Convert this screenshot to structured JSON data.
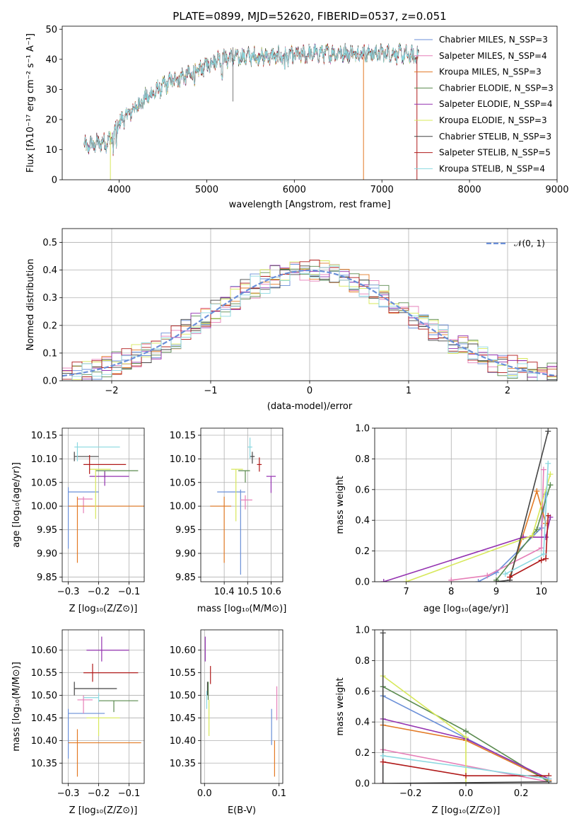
{
  "chart_data": [
    {
      "id": "spectrum",
      "type": "line",
      "title": "PLATE=0899, MJD=52620, FIBERID=0537, z=0.051",
      "xlabel": "wavelength [Angstrom, rest frame]",
      "ylabel": "Flux [fλ10⁻¹⁷ erg cm⁻² s⁻¹ A⁻¹]",
      "xlim": [
        3350,
        9000
      ],
      "ylim": [
        0,
        51
      ],
      "xticks": [
        "4000",
        "5000",
        "6000",
        "7000",
        "8000",
        "9000"
      ],
      "yticks": [
        "0",
        "10",
        "20",
        "30",
        "40",
        "50"
      ],
      "grid": false,
      "legend_position": "upper-right",
      "continuum_anchors": [
        [
          3600,
          11
        ],
        [
          3900,
          13
        ],
        [
          4000,
          19
        ],
        [
          4300,
          27
        ],
        [
          4600,
          33
        ],
        [
          4900,
          36
        ],
        [
          5100,
          40
        ],
        [
          5500,
          41
        ],
        [
          5900,
          41
        ],
        [
          6300,
          42
        ],
        [
          6700,
          42
        ],
        [
          7100,
          42
        ],
        [
          7400,
          41
        ]
      ],
      "series": [
        {
          "name": "Chabrier MILES, N_SSP=3",
          "color": "#6a8fd8"
        },
        {
          "name": "Salpeter MILES, N_SSP=4",
          "color": "#e67fb8"
        },
        {
          "name": "Kroupa MILES, N_SSP=3",
          "color": "#e37a25"
        },
        {
          "name": "Chabrier ELODIE, N_SSP=3",
          "color": "#5a8a4e"
        },
        {
          "name": "Salpeter ELODIE, N_SSP=4",
          "color": "#9432b0"
        },
        {
          "name": "Kroupa ELODIE, N_SSP=3",
          "color": "#d7e85a"
        },
        {
          "name": "Chabrier STELIB, N_SSP=3",
          "color": "#444444"
        },
        {
          "name": "Salpeter STELIB, N_SSP=5",
          "color": "#b01a1a"
        },
        {
          "name": "Kroupa STELIB, N_SSP=4",
          "color": "#8ad8e0"
        }
      ]
    },
    {
      "id": "residuals",
      "type": "line",
      "xlabel": "(data-model)/error",
      "ylabel": "Normed distribution",
      "xlim": [
        -2.5,
        2.5
      ],
      "ylim": [
        0,
        0.55
      ],
      "xticks": [
        "−2",
        "−1",
        "0",
        "1",
        "2"
      ],
      "yticks": [
        "0.0",
        "0.1",
        "0.2",
        "0.3",
        "0.4",
        "0.5"
      ],
      "grid": true,
      "legend_position": "upper-right",
      "gaussian_label": "𝒩(0, 1)",
      "gaussian_color": "#6a8fd8",
      "bin_width": 0.1
    },
    {
      "id": "age-vs-Z",
      "type": "scatter",
      "xlabel": "Z [log₁₀(Z/Z⊙)]",
      "ylabel": "age  [log₁₀(age/yr)]",
      "xlim": [
        -0.32,
        -0.05
      ],
      "ylim": [
        9.84,
        10.165
      ],
      "xticks": [
        "−0.3",
        "−0.2",
        "−0.1"
      ],
      "yticks": [
        "9.85",
        "9.90",
        "9.95",
        "10.00",
        "10.05",
        "10.10",
        "10.15"
      ],
      "grid": true,
      "points": [
        {
          "x": -0.3,
          "y": 10.03,
          "xerr": [
            0.0,
            0.1
          ],
          "yerr": [
            0.12,
            0.01
          ],
          "color": "#6a8fd8"
        },
        {
          "x": -0.25,
          "y": 10.015,
          "xerr": [
            0.02,
            0.03
          ],
          "yerr": [
            0.03,
            0.005
          ],
          "color": "#e67fb8"
        },
        {
          "x": -0.27,
          "y": 10.0,
          "xerr": [
            0.03,
            0.22
          ],
          "yerr": [
            0.12,
            0.02
          ],
          "color": "#e37a25"
        },
        {
          "x": -0.18,
          "y": 10.075,
          "xerr": [
            0.03,
            0.11
          ],
          "yerr": [
            0.015,
            0.0
          ],
          "color": "#5a8a4e"
        },
        {
          "x": -0.18,
          "y": 10.063,
          "xerr": [
            0.05,
            0.08
          ],
          "yerr": [
            0.02,
            0.01
          ],
          "color": "#9432b0"
        },
        {
          "x": -0.21,
          "y": 10.078,
          "xerr": [
            0.02,
            0.05
          ],
          "yerr": [
            0.105,
            0.0
          ],
          "color": "#d7e85a"
        },
        {
          "x": -0.28,
          "y": 10.105,
          "xerr": [
            0.0,
            0.08
          ],
          "yerr": [
            0.01,
            0.01
          ],
          "color": "#444444"
        },
        {
          "x": -0.23,
          "y": 10.088,
          "xerr": [
            0.02,
            0.12
          ],
          "yerr": [
            0.02,
            0.02
          ],
          "color": "#b01a1a"
        },
        {
          "x": -0.27,
          "y": 10.125,
          "xerr": [
            0.01,
            0.14
          ],
          "yerr": [
            0.03,
            0.01
          ],
          "color": "#8ad8e0"
        }
      ]
    },
    {
      "id": "age-vs-mass",
      "type": "scatter",
      "xlabel": "mass [log₁₀(M/M⊙)]",
      "xlim": [
        10.3,
        10.65
      ],
      "ylim": [
        9.84,
        10.165
      ],
      "xticks": [
        "10.4",
        "10.5",
        "10.6"
      ],
      "yticks": [
        "9.85",
        "9.90",
        "9.95",
        "10.00",
        "10.05",
        "10.10",
        "10.15"
      ],
      "grid": true,
      "points": [
        {
          "x": 10.47,
          "y": 10.03,
          "xerr": [
            0.1,
            0.02
          ],
          "yerr": [
            0.175,
            0.005
          ],
          "color": "#6a8fd8"
        },
        {
          "x": 10.49,
          "y": 10.013,
          "xerr": [
            0.02,
            0.03
          ],
          "yerr": [
            0.02,
            0.01
          ],
          "color": "#e67fb8"
        },
        {
          "x": 10.4,
          "y": 10.0,
          "xerr": [
            0.06,
            0.03
          ],
          "yerr": [
            0.12,
            0.02
          ],
          "color": "#e37a25"
        },
        {
          "x": 10.49,
          "y": 10.075,
          "xerr": [
            0.03,
            0.02
          ],
          "yerr": [
            0.025,
            0.0
          ],
          "color": "#5a8a4e"
        },
        {
          "x": 10.6,
          "y": 10.063,
          "xerr": [
            0.02,
            0.02
          ],
          "yerr": [
            0.035,
            0.0
          ],
          "color": "#9432b0"
        },
        {
          "x": 10.45,
          "y": 10.078,
          "xerr": [
            0.02,
            0.03
          ],
          "yerr": [
            0.11,
            0.0
          ],
          "color": "#d7e85a"
        },
        {
          "x": 10.52,
          "y": 10.105,
          "xerr": [
            0.01,
            0.01
          ],
          "yerr": [
            0.015,
            0.01
          ],
          "color": "#444444"
        },
        {
          "x": 10.55,
          "y": 10.088,
          "xerr": [
            0.01,
            0.01
          ],
          "yerr": [
            0.015,
            0.015
          ],
          "color": "#b01a1a"
        },
        {
          "x": 10.51,
          "y": 10.125,
          "xerr": [
            0.01,
            0.01
          ],
          "yerr": [
            0.025,
            0.02
          ],
          "color": "#8ad8e0"
        }
      ]
    },
    {
      "id": "massweight-vs-age",
      "type": "line",
      "xlabel": "age  [log₁₀(age/yr)]",
      "ylabel": "mass weight",
      "xlim": [
        6.3,
        10.35
      ],
      "ylim": [
        0,
        1.0
      ],
      "xticks": [
        "7",
        "8",
        "9",
        "10"
      ],
      "yticks": [
        "0.0",
        "0.2",
        "0.4",
        "0.6",
        "0.8",
        "1.0"
      ],
      "grid": true,
      "series": [
        {
          "color": "#6a8fd8",
          "x": [
            8.6,
            9.0,
            10.0,
            10.1
          ],
          "y": [
            0.0,
            0.06,
            0.35,
            0.57
          ]
        },
        {
          "color": "#e67fb8",
          "x": [
            8.0,
            8.8,
            10.0,
            10.05
          ],
          "y": [
            0.01,
            0.04,
            0.22,
            0.73
          ]
        },
        {
          "color": "#e37a25",
          "x": [
            9.3,
            9.9,
            10.1
          ],
          "y": [
            0.03,
            0.59,
            0.38
          ]
        },
        {
          "color": "#5a8a4e",
          "x": [
            9.0,
            9.9,
            10.2
          ],
          "y": [
            0.01,
            0.34,
            0.63
          ]
        },
        {
          "color": "#9432b0",
          "x": [
            6.5,
            9.6,
            10.1,
            10.2
          ],
          "y": [
            0.0,
            0.29,
            0.29,
            0.42
          ]
        },
        {
          "color": "#d7e85a",
          "x": [
            7.0,
            9.8,
            10.2
          ],
          "y": [
            0.0,
            0.3,
            0.7
          ]
        },
        {
          "color": "#444444",
          "x": [
            9.0,
            9.3,
            10.15
          ],
          "y": [
            0.0,
            0.01,
            0.98
          ]
        },
        {
          "color": "#b01a1a",
          "x": [
            9.3,
            10.0,
            10.1,
            10.15
          ],
          "y": [
            0.03,
            0.14,
            0.15,
            0.43
          ]
        },
        {
          "color": "#8ad8e0",
          "x": [
            9.2,
            10.05,
            10.15
          ],
          "y": [
            0.05,
            0.18,
            0.77
          ]
        }
      ]
    },
    {
      "id": "mass-vs-Z",
      "type": "scatter",
      "xlabel": "Z [log₁₀(Z/Z⊙)]",
      "ylabel": "mass [log₁₀(M/M⊙)]",
      "xlim": [
        -0.32,
        -0.05
      ],
      "ylim": [
        10.305,
        10.645
      ],
      "xticks": [
        "−0.3",
        "−0.2",
        "−0.1"
      ],
      "yticks": [
        "10.35",
        "10.40",
        "10.45",
        "10.50",
        "10.55",
        "10.60"
      ],
      "grid": true,
      "points": [
        {
          "x": -0.3,
          "y": 10.46,
          "xerr": [
            0.0,
            0.12
          ],
          "yerr": [
            0.1,
            0.01
          ],
          "color": "#6a8fd8"
        },
        {
          "x": -0.25,
          "y": 10.49,
          "xerr": [
            0.02,
            0.03
          ],
          "yerr": [
            0.03,
            0.01
          ],
          "color": "#e67fb8"
        },
        {
          "x": -0.27,
          "y": 10.395,
          "xerr": [
            0.03,
            0.21
          ],
          "yerr": [
            0.075,
            0.03
          ],
          "color": "#e37a25"
        },
        {
          "x": -0.15,
          "y": 10.488,
          "xerr": [
            0.05,
            0.08
          ],
          "yerr": [
            0.025,
            0.0
          ],
          "color": "#5a8a4e"
        },
        {
          "x": -0.19,
          "y": 10.6,
          "xerr": [
            0.05,
            0.09
          ],
          "yerr": [
            0.025,
            0.03
          ],
          "color": "#9432b0"
        },
        {
          "x": -0.2,
          "y": 10.45,
          "xerr": [
            0.04,
            0.07
          ],
          "yerr": [
            0.04,
            0.0
          ],
          "color": "#d7e85a"
        },
        {
          "x": -0.28,
          "y": 10.515,
          "xerr": [
            0.0,
            0.14
          ],
          "yerr": [
            0.015,
            0.015
          ],
          "color": "#444444"
        },
        {
          "x": -0.22,
          "y": 10.55,
          "xerr": [
            0.03,
            0.15
          ],
          "yerr": [
            0.02,
            0.02
          ],
          "color": "#b01a1a"
        },
        {
          "x": -0.2,
          "y": 10.495,
          "xerr": [
            0.05,
            0.0
          ],
          "yerr": [
            0.01,
            0.01
          ],
          "color": "#8ad8e0"
        }
      ]
    },
    {
      "id": "mass-vs-ebv",
      "type": "scatter",
      "xlabel": "E(B-V)",
      "xlim": [
        -0.005,
        0.105
      ],
      "ylim": [
        10.305,
        10.645
      ],
      "xticks": [
        "0.0",
        "0.1"
      ],
      "yticks": [
        "10.35",
        "10.40",
        "10.45",
        "10.50",
        "10.55",
        "10.60"
      ],
      "grid": true,
      "points": [
        {
          "x": 0.09,
          "y": 10.43,
          "xerr": [
            0.0,
            0.0
          ],
          "yerr": [
            0.04,
            0.04
          ],
          "color": "#6a8fd8"
        },
        {
          "x": 0.097,
          "y": 10.48,
          "xerr": [
            0.0,
            0.0
          ],
          "yerr": [
            0.035,
            0.04
          ],
          "color": "#e67fb8"
        },
        {
          "x": 0.094,
          "y": 10.36,
          "xerr": [
            0.0,
            0.0
          ],
          "yerr": [
            0.04,
            0.04
          ],
          "color": "#e37a25"
        },
        {
          "x": 0.005,
          "y": 10.51,
          "xerr": [
            0.0,
            0.0
          ],
          "yerr": [
            0.02,
            0.02
          ],
          "color": "#5a8a4e"
        },
        {
          "x": 0.001,
          "y": 10.6,
          "xerr": [
            0.0,
            0.0
          ],
          "yerr": [
            0.025,
            0.03
          ],
          "color": "#9432b0"
        },
        {
          "x": 0.006,
          "y": 10.45,
          "xerr": [
            0.0,
            0.0
          ],
          "yerr": [
            0.04,
            0.04
          ],
          "color": "#d7e85a"
        },
        {
          "x": 0.004,
          "y": 10.515,
          "xerr": [
            0.0,
            0.0
          ],
          "yerr": [
            0.015,
            0.015
          ],
          "color": "#444444"
        },
        {
          "x": 0.008,
          "y": 10.545,
          "xerr": [
            0.0,
            0.0
          ],
          "yerr": [
            0.02,
            0.02
          ],
          "color": "#b01a1a"
        },
        {
          "x": 0.003,
          "y": 10.49,
          "xerr": [
            0.0,
            0.0
          ],
          "yerr": [
            0.02,
            0.02
          ],
          "color": "#8ad8e0"
        }
      ]
    },
    {
      "id": "massweight-vs-Z",
      "type": "line",
      "xlabel": "Z [log₁₀(Z/Z⊙)]",
      "ylabel": "mass weight",
      "xlim": [
        -0.33,
        0.33
      ],
      "ylim": [
        0,
        1.0
      ],
      "xticks": [
        "−0.2",
        "0.0",
        "0.2"
      ],
      "yticks": [
        "0.0",
        "0.2",
        "0.4",
        "0.6",
        "0.8",
        "1.0"
      ],
      "grid": true,
      "series": [
        {
          "color": "#6a8fd8",
          "x": [
            -0.3,
            0.3
          ],
          "y": [
            0.57,
            0.02
          ]
        },
        {
          "color": "#e67fb8",
          "x": [
            -0.3,
            -0.3,
            0.3
          ],
          "y": [
            0.0,
            0.22,
            0.01
          ]
        },
        {
          "color": "#e37a25",
          "x": [
            -0.3,
            0.0,
            0.3
          ],
          "y": [
            0.38,
            0.28,
            0.02
          ]
        },
        {
          "color": "#5a8a4e",
          "x": [
            -0.3,
            0.0,
            0.3
          ],
          "y": [
            0.63,
            0.34,
            0.01
          ]
        },
        {
          "color": "#9432b0",
          "x": [
            -0.3,
            0.0,
            0.3
          ],
          "y": [
            0.42,
            0.29,
            0.03
          ]
        },
        {
          "color": "#d7e85a",
          "x": [
            -0.3,
            0.0,
            0.0
          ],
          "y": [
            0.7,
            0.3,
            0.0
          ]
        },
        {
          "color": "#444444",
          "x": [
            -0.3,
            -0.3,
            0.3
          ],
          "y": [
            0.98,
            0.0,
            0.01
          ]
        },
        {
          "color": "#b01a1a",
          "x": [
            -0.3,
            0.0,
            0.3
          ],
          "y": [
            0.14,
            0.05,
            0.05
          ]
        },
        {
          "color": "#8ad8e0",
          "x": [
            -0.3,
            0.3
          ],
          "y": [
            0.18,
            0.03
          ]
        }
      ]
    }
  ]
}
